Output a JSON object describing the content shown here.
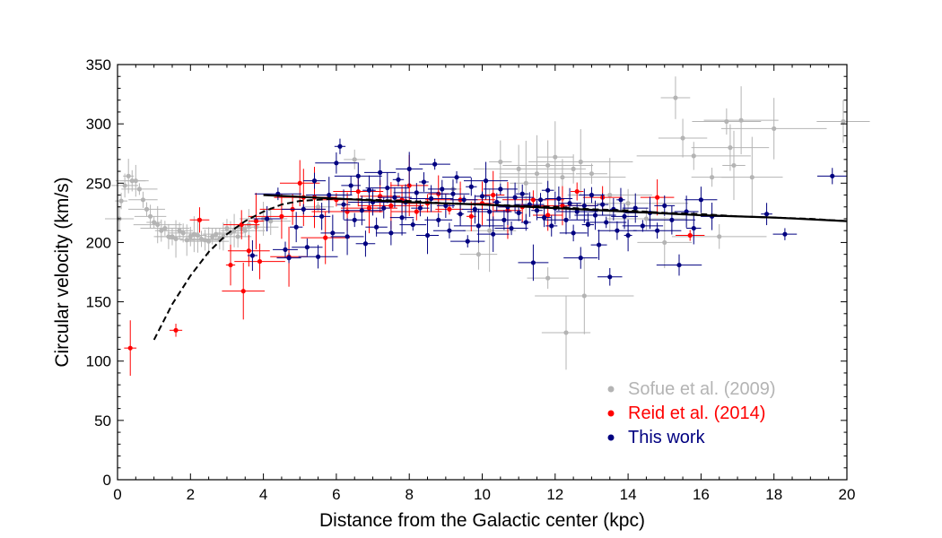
{
  "chart_data": {
    "type": "scatter",
    "xlabel": "Distance from the Galactic center (kpc)",
    "ylabel": "Circular velocity (km/s)",
    "xlim": [
      0,
      20
    ],
    "ylim": [
      0,
      350
    ],
    "xticks": [
      "0",
      "2",
      "4",
      "6",
      "8",
      "10",
      "12",
      "14",
      "16",
      "18",
      "20"
    ],
    "yticks": [
      "0",
      "50",
      "100",
      "150",
      "200",
      "250",
      "300",
      "350"
    ],
    "grid": false,
    "legend_position": "bottom-right",
    "series": [
      {
        "name": "Sofue et al. (2009)",
        "color": "#b4b4b4",
        "marker": "circle-with-errorbars",
        "points": [
          {
            "x": 0.05,
            "y": 220
          },
          {
            "x": 0.1,
            "y": 235
          },
          {
            "x": 0.2,
            "y": 248
          },
          {
            "x": 0.3,
            "y": 256
          },
          {
            "x": 0.4,
            "y": 252
          },
          {
            "x": 0.5,
            "y": 252
          },
          {
            "x": 0.6,
            "y": 245
          },
          {
            "x": 0.7,
            "y": 236
          },
          {
            "x": 0.8,
            "y": 228
          },
          {
            "x": 0.9,
            "y": 222
          },
          {
            "x": 1.0,
            "y": 217
          },
          {
            "x": 1.1,
            "y": 215
          },
          {
            "x": 1.2,
            "y": 210
          },
          {
            "x": 1.3,
            "y": 212
          },
          {
            "x": 1.4,
            "y": 205
          },
          {
            "x": 1.5,
            "y": 205
          },
          {
            "x": 1.6,
            "y": 203
          },
          {
            "x": 1.7,
            "y": 210
          },
          {
            "x": 1.8,
            "y": 208
          },
          {
            "x": 1.9,
            "y": 202
          },
          {
            "x": 2.0,
            "y": 205
          },
          {
            "x": 2.1,
            "y": 207
          },
          {
            "x": 2.2,
            "y": 206
          },
          {
            "x": 2.3,
            "y": 203
          },
          {
            "x": 2.4,
            "y": 202
          },
          {
            "x": 2.5,
            "y": 201
          },
          {
            "x": 2.6,
            "y": 205
          },
          {
            "x": 2.7,
            "y": 207
          },
          {
            "x": 2.8,
            "y": 203
          },
          {
            "x": 2.9,
            "y": 205
          },
          {
            "x": 3.0,
            "y": 212
          },
          {
            "x": 3.1,
            "y": 208
          },
          {
            "x": 3.2,
            "y": 210
          },
          {
            "x": 3.3,
            "y": 205
          },
          {
            "x": 3.4,
            "y": 212
          },
          {
            "x": 3.5,
            "y": 210
          },
          {
            "x": 3.6,
            "y": 215
          },
          {
            "x": 3.8,
            "y": 213
          },
          {
            "x": 4.0,
            "y": 220
          },
          {
            "x": 4.2,
            "y": 218
          },
          {
            "x": 5.5,
            "y": 230
          },
          {
            "x": 6.5,
            "y": 270
          },
          {
            "x": 9.2,
            "y": 245
          },
          {
            "x": 9.9,
            "y": 190
          },
          {
            "x": 10.2,
            "y": 210
          },
          {
            "x": 10.5,
            "y": 268
          },
          {
            "x": 11.0,
            "y": 262
          },
          {
            "x": 11.2,
            "y": 250
          },
          {
            "x": 11.5,
            "y": 258
          },
          {
            "x": 11.8,
            "y": 265
          },
          {
            "x": 12.0,
            "y": 272
          },
          {
            "x": 12.2,
            "y": 255
          },
          {
            "x": 12.5,
            "y": 262
          },
          {
            "x": 12.7,
            "y": 268
          },
          {
            "x": 12.8,
            "y": 155
          },
          {
            "x": 12.3,
            "y": 124
          },
          {
            "x": 11.8,
            "y": 170
          },
          {
            "x": 13.0,
            "y": 258
          },
          {
            "x": 13.5,
            "y": 240
          },
          {
            "x": 14.0,
            "y": 233
          },
          {
            "x": 14.5,
            "y": 220
          },
          {
            "x": 15.0,
            "y": 200
          },
          {
            "x": 15.3,
            "y": 322
          },
          {
            "x": 15.5,
            "y": 288
          },
          {
            "x": 15.8,
            "y": 273
          },
          {
            "x": 16.3,
            "y": 255
          },
          {
            "x": 16.5,
            "y": 205
          },
          {
            "x": 16.7,
            "y": 302
          },
          {
            "x": 16.8,
            "y": 280
          },
          {
            "x": 16.9,
            "y": 265
          },
          {
            "x": 17.1,
            "y": 303
          },
          {
            "x": 17.4,
            "y": 255
          },
          {
            "x": 18.0,
            "y": 296
          },
          {
            "x": 19.9,
            "y": 302
          }
        ]
      },
      {
        "name": "Reid et al. (2014)",
        "color": "#ff0000",
        "marker": "circle-with-errorbars",
        "points": [
          {
            "x": 0.35,
            "y": 111
          },
          {
            "x": 1.6,
            "y": 126
          },
          {
            "x": 2.25,
            "y": 219
          },
          {
            "x": 3.1,
            "y": 181
          },
          {
            "x": 3.4,
            "y": 215
          },
          {
            "x": 3.45,
            "y": 159
          },
          {
            "x": 3.6,
            "y": 193
          },
          {
            "x": 3.8,
            "y": 218
          },
          {
            "x": 3.9,
            "y": 184
          },
          {
            "x": 4.5,
            "y": 222
          },
          {
            "x": 4.7,
            "y": 188
          },
          {
            "x": 4.8,
            "y": 228
          },
          {
            "x": 5.0,
            "y": 250
          },
          {
            "x": 5.1,
            "y": 238
          },
          {
            "x": 5.4,
            "y": 238
          },
          {
            "x": 5.7,
            "y": 204
          },
          {
            "x": 6.0,
            "y": 236
          },
          {
            "x": 6.3,
            "y": 226
          },
          {
            "x": 6.6,
            "y": 243
          },
          {
            "x": 6.9,
            "y": 229
          },
          {
            "x": 7.2,
            "y": 239
          },
          {
            "x": 7.5,
            "y": 231
          },
          {
            "x": 7.8,
            "y": 236
          },
          {
            "x": 8.0,
            "y": 248
          },
          {
            "x": 8.2,
            "y": 226
          },
          {
            "x": 8.5,
            "y": 233
          },
          {
            "x": 8.8,
            "y": 241
          },
          {
            "x": 9.1,
            "y": 228
          },
          {
            "x": 9.4,
            "y": 236
          },
          {
            "x": 9.7,
            "y": 222
          },
          {
            "x": 10.0,
            "y": 233
          },
          {
            "x": 10.3,
            "y": 240
          },
          {
            "x": 10.7,
            "y": 227
          },
          {
            "x": 11.1,
            "y": 230
          },
          {
            "x": 11.4,
            "y": 236
          },
          {
            "x": 11.8,
            "y": 223
          },
          {
            "x": 12.2,
            "y": 231
          },
          {
            "x": 12.6,
            "y": 243
          },
          {
            "x": 13.3,
            "y": 238
          },
          {
            "x": 14.8,
            "y": 238
          },
          {
            "x": 15.7,
            "y": 206
          }
        ]
      },
      {
        "name": "This work",
        "color": "#000080",
        "marker": "circle-with-errorbars",
        "points": [
          {
            "x": 3.7,
            "y": 189
          },
          {
            "x": 4.1,
            "y": 220
          },
          {
            "x": 4.4,
            "y": 241
          },
          {
            "x": 4.6,
            "y": 194
          },
          {
            "x": 4.7,
            "y": 187
          },
          {
            "x": 4.9,
            "y": 213
          },
          {
            "x": 5.1,
            "y": 228
          },
          {
            "x": 5.2,
            "y": 196
          },
          {
            "x": 5.4,
            "y": 252
          },
          {
            "x": 5.5,
            "y": 188
          },
          {
            "x": 5.6,
            "y": 222
          },
          {
            "x": 5.8,
            "y": 240
          },
          {
            "x": 5.9,
            "y": 208
          },
          {
            "x": 6.0,
            "y": 267
          },
          {
            "x": 6.1,
            "y": 281
          },
          {
            "x": 6.2,
            "y": 232
          },
          {
            "x": 6.3,
            "y": 205
          },
          {
            "x": 6.4,
            "y": 248
          },
          {
            "x": 6.5,
            "y": 219
          },
          {
            "x": 6.6,
            "y": 256
          },
          {
            "x": 6.7,
            "y": 227
          },
          {
            "x": 6.8,
            "y": 199
          },
          {
            "x": 6.9,
            "y": 244
          },
          {
            "x": 7.0,
            "y": 234
          },
          {
            "x": 7.1,
            "y": 213
          },
          {
            "x": 7.2,
            "y": 259
          },
          {
            "x": 7.3,
            "y": 229
          },
          {
            "x": 7.4,
            "y": 246
          },
          {
            "x": 7.5,
            "y": 208
          },
          {
            "x": 7.6,
            "y": 238
          },
          {
            "x": 7.7,
            "y": 253
          },
          {
            "x": 7.8,
            "y": 221
          },
          {
            "x": 7.9,
            "y": 234
          },
          {
            "x": 8.0,
            "y": 262
          },
          {
            "x": 8.1,
            "y": 215
          },
          {
            "x": 8.2,
            "y": 242
          },
          {
            "x": 8.3,
            "y": 229
          },
          {
            "x": 8.4,
            "y": 251
          },
          {
            "x": 8.5,
            "y": 206
          },
          {
            "x": 8.6,
            "y": 237
          },
          {
            "x": 8.7,
            "y": 266
          },
          {
            "x": 8.8,
            "y": 219
          },
          {
            "x": 8.9,
            "y": 245
          },
          {
            "x": 9.0,
            "y": 231
          },
          {
            "x": 9.1,
            "y": 210
          },
          {
            "x": 9.2,
            "y": 241
          },
          {
            "x": 9.3,
            "y": 255
          },
          {
            "x": 9.4,
            "y": 224
          },
          {
            "x": 9.5,
            "y": 236
          },
          {
            "x": 9.6,
            "y": 201
          },
          {
            "x": 9.7,
            "y": 247
          },
          {
            "x": 9.8,
            "y": 228
          },
          {
            "x": 9.9,
            "y": 214
          },
          {
            "x": 10.0,
            "y": 239
          },
          {
            "x": 10.1,
            "y": 252
          },
          {
            "x": 10.2,
            "y": 226
          },
          {
            "x": 10.3,
            "y": 207
          },
          {
            "x": 10.4,
            "y": 234
          },
          {
            "x": 10.5,
            "y": 245
          },
          {
            "x": 10.6,
            "y": 219
          },
          {
            "x": 10.7,
            "y": 230
          },
          {
            "x": 10.8,
            "y": 212
          },
          {
            "x": 10.9,
            "y": 238
          },
          {
            "x": 11.0,
            "y": 225
          },
          {
            "x": 11.1,
            "y": 241
          },
          {
            "x": 11.2,
            "y": 217
          },
          {
            "x": 11.3,
            "y": 232
          },
          {
            "x": 11.4,
            "y": 183
          },
          {
            "x": 11.5,
            "y": 227
          },
          {
            "x": 11.6,
            "y": 236
          },
          {
            "x": 11.7,
            "y": 221
          },
          {
            "x": 11.8,
            "y": 244
          },
          {
            "x": 11.9,
            "y": 214
          },
          {
            "x": 12.0,
            "y": 229
          },
          {
            "x": 12.1,
            "y": 237
          },
          {
            "x": 12.3,
            "y": 219
          },
          {
            "x": 12.4,
            "y": 233
          },
          {
            "x": 12.5,
            "y": 208
          },
          {
            "x": 12.6,
            "y": 226
          },
          {
            "x": 12.7,
            "y": 187
          },
          {
            "x": 12.8,
            "y": 231
          },
          {
            "x": 12.9,
            "y": 215
          },
          {
            "x": 13.0,
            "y": 240
          },
          {
            "x": 13.1,
            "y": 223
          },
          {
            "x": 13.2,
            "y": 198
          },
          {
            "x": 13.3,
            "y": 232
          },
          {
            "x": 13.4,
            "y": 217
          },
          {
            "x": 13.5,
            "y": 171
          },
          {
            "x": 13.6,
            "y": 228
          },
          {
            "x": 13.7,
            "y": 210
          },
          {
            "x": 13.8,
            "y": 236
          },
          {
            "x": 13.9,
            "y": 222
          },
          {
            "x": 14.0,
            "y": 206
          },
          {
            "x": 14.2,
            "y": 229
          },
          {
            "x": 14.4,
            "y": 214
          },
          {
            "x": 14.6,
            "y": 225
          },
          {
            "x": 14.8,
            "y": 210
          },
          {
            "x": 15.0,
            "y": 231
          },
          {
            "x": 15.2,
            "y": 219
          },
          {
            "x": 15.4,
            "y": 181
          },
          {
            "x": 15.6,
            "y": 226
          },
          {
            "x": 15.8,
            "y": 212
          },
          {
            "x": 16.0,
            "y": 236
          },
          {
            "x": 16.3,
            "y": 222
          },
          {
            "x": 17.8,
            "y": 224
          },
          {
            "x": 18.3,
            "y": 207
          },
          {
            "x": 19.6,
            "y": 256
          }
        ]
      }
    ],
    "curves": [
      {
        "style": "dashed",
        "color": "#000000",
        "points": [
          {
            "x": 1.0,
            "y": 118
          },
          {
            "x": 1.5,
            "y": 148
          },
          {
            "x": 2.0,
            "y": 172
          },
          {
            "x": 2.5,
            "y": 192
          },
          {
            "x": 3.0,
            "y": 207
          },
          {
            "x": 3.5,
            "y": 218
          },
          {
            "x": 4.0,
            "y": 226
          },
          {
            "x": 4.5,
            "y": 232
          },
          {
            "x": 5.0,
            "y": 235
          },
          {
            "x": 6.0,
            "y": 237
          },
          {
            "x": 7.0,
            "y": 236
          },
          {
            "x": 8.0,
            "y": 235
          },
          {
            "x": 9.0,
            "y": 233
          },
          {
            "x": 10.0,
            "y": 232
          },
          {
            "x": 11.0,
            "y": 231
          },
          {
            "x": 12.0,
            "y": 230
          },
          {
            "x": 13.0,
            "y": 228
          },
          {
            "x": 14.0,
            "y": 227
          },
          {
            "x": 15.0,
            "y": 225
          },
          {
            "x": 16.0,
            "y": 224
          },
          {
            "x": 17.0,
            "y": 222
          },
          {
            "x": 18.0,
            "y": 221
          },
          {
            "x": 19.0,
            "y": 220
          },
          {
            "x": 20.0,
            "y": 218
          }
        ]
      },
      {
        "style": "solid",
        "color": "#000000",
        "points": [
          {
            "x": 4.0,
            "y": 240
          },
          {
            "x": 6.0,
            "y": 237
          },
          {
            "x": 8.0,
            "y": 234
          },
          {
            "x": 10.0,
            "y": 232
          },
          {
            "x": 12.0,
            "y": 229
          },
          {
            "x": 14.0,
            "y": 226
          },
          {
            "x": 16.0,
            "y": 223
          },
          {
            "x": 18.0,
            "y": 221
          },
          {
            "x": 20.0,
            "y": 218
          }
        ]
      }
    ]
  }
}
